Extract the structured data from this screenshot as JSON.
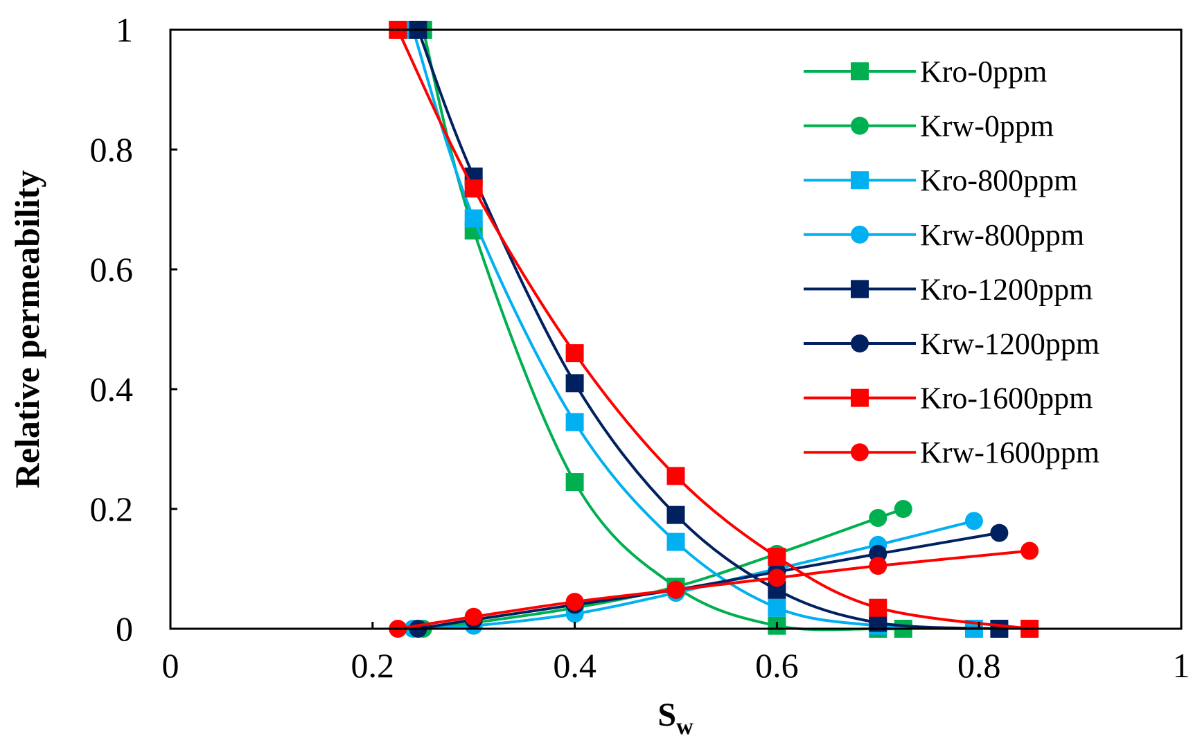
{
  "chart_data": {
    "type": "line",
    "title": "",
    "xlabel_main": "S",
    "xlabel_sub": "w",
    "ylabel": "Relative permeability",
    "xlim": [
      0,
      1
    ],
    "ylim": [
      0,
      1
    ],
    "xticks": [
      0,
      0.2,
      0.4,
      0.6,
      0.8,
      1
    ],
    "xtick_labels": [
      "0",
      "0.2",
      "0.4",
      "0.6",
      "0.8",
      "1"
    ],
    "yticks": [
      0,
      0.2,
      0.4,
      0.6,
      0.8,
      1
    ],
    "ytick_labels": [
      "0",
      "0.2",
      "0.4",
      "0.6",
      "0.8",
      "1"
    ],
    "legend_position": "top-right",
    "series": [
      {
        "name": "Kro-0ppm",
        "color": "#00b050",
        "marker": "square",
        "x": [
          0.25,
          0.3,
          0.4,
          0.5,
          0.6,
          0.7,
          0.725
        ],
        "y": [
          1.0,
          0.665,
          0.245,
          0.07,
          0.005,
          0.0,
          0.0
        ]
      },
      {
        "name": "Krw-0ppm",
        "color": "#00b050",
        "marker": "circle",
        "x": [
          0.25,
          0.3,
          0.4,
          0.5,
          0.6,
          0.7,
          0.725
        ],
        "y": [
          0.0,
          0.01,
          0.035,
          0.07,
          0.125,
          0.185,
          0.2
        ]
      },
      {
        "name": "Kro-800ppm",
        "color": "#00b0f0",
        "marker": "square",
        "x": [
          0.24,
          0.3,
          0.4,
          0.5,
          0.6,
          0.7,
          0.795
        ],
        "y": [
          1.0,
          0.685,
          0.345,
          0.145,
          0.035,
          0.005,
          0.0
        ]
      },
      {
        "name": "Krw-800ppm",
        "color": "#00b0f0",
        "marker": "circle",
        "x": [
          0.24,
          0.3,
          0.4,
          0.5,
          0.6,
          0.7,
          0.795
        ],
        "y": [
          0.0,
          0.005,
          0.025,
          0.06,
          0.1,
          0.14,
          0.18
        ]
      },
      {
        "name": "Kro-1200ppm",
        "color": "#002060",
        "marker": "square",
        "x": [
          0.245,
          0.3,
          0.4,
          0.5,
          0.6,
          0.7,
          0.82
        ],
        "y": [
          1.0,
          0.755,
          0.41,
          0.19,
          0.065,
          0.01,
          0.0
        ]
      },
      {
        "name": "Krw-1200ppm",
        "color": "#002060",
        "marker": "circle",
        "x": [
          0.245,
          0.3,
          0.4,
          0.5,
          0.6,
          0.7,
          0.82
        ],
        "y": [
          0.0,
          0.015,
          0.04,
          0.065,
          0.095,
          0.125,
          0.16
        ]
      },
      {
        "name": "Kro-1600ppm",
        "color": "#ff0000",
        "marker": "square",
        "x": [
          0.225,
          0.3,
          0.4,
          0.5,
          0.6,
          0.7,
          0.85
        ],
        "y": [
          1.0,
          0.735,
          0.46,
          0.255,
          0.12,
          0.035,
          0.0
        ]
      },
      {
        "name": "Krw-1600ppm",
        "color": "#ff0000",
        "marker": "circle",
        "x": [
          0.225,
          0.3,
          0.4,
          0.5,
          0.6,
          0.7,
          0.85
        ],
        "y": [
          0.0,
          0.02,
          0.045,
          0.065,
          0.085,
          0.105,
          0.13
        ]
      }
    ]
  }
}
